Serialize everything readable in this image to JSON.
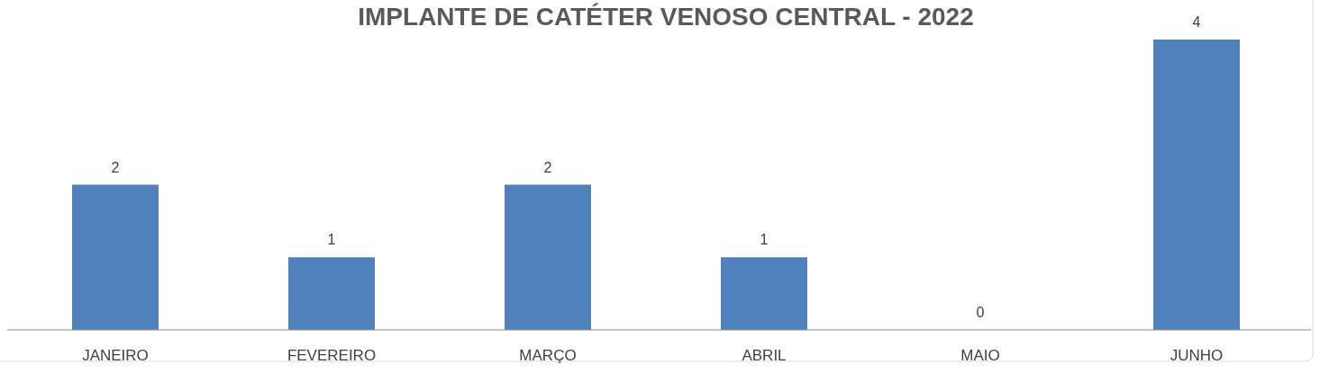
{
  "chart_data": {
    "type": "bar",
    "title": "IMPLANTE DE CATÉTER VENOSO CENTRAL - 2022",
    "categories": [
      "JANEIRO",
      "FEVEREIRO",
      "MARÇO",
      "ABRIL",
      "MAIO",
      "JUNHO"
    ],
    "values": [
      2,
      1,
      2,
      1,
      0,
      4
    ],
    "color": "#4f81bd",
    "data_labels": true
  }
}
